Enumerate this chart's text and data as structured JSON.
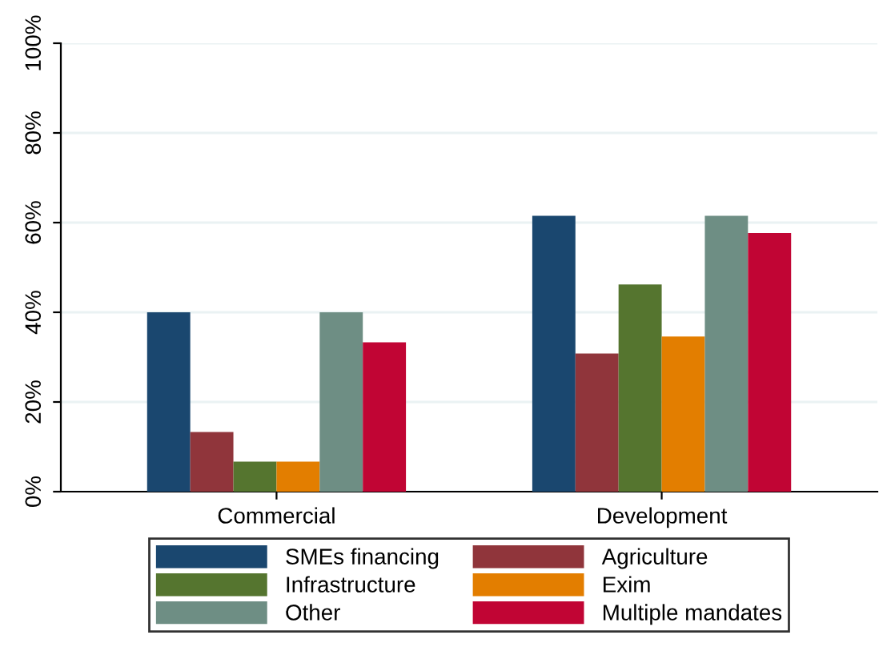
{
  "chart_data": {
    "type": "bar",
    "categories": [
      "Commercial",
      "Development"
    ],
    "series": [
      {
        "name": "SMEs financing",
        "color": "#1a476f",
        "values": [
          40,
          61.5
        ]
      },
      {
        "name": "Agriculture",
        "color": "#90353b",
        "values": [
          13.3,
          30.8
        ]
      },
      {
        "name": "Infrastructure",
        "color": "#55752f",
        "values": [
          6.7,
          46.2
        ]
      },
      {
        "name": "Exim",
        "color": "#e37e00",
        "values": [
          6.7,
          34.6
        ]
      },
      {
        "name": "Other",
        "color": "#6e8e84",
        "values": [
          40,
          61.5
        ]
      },
      {
        "name": "Multiple mandates",
        "color": "#c10534",
        "values": [
          33.3,
          57.7
        ]
      }
    ],
    "ylim": [
      0,
      100
    ],
    "yticks": [
      {
        "value": 0,
        "label": "0%"
      },
      {
        "value": 20,
        "label": "20%"
      },
      {
        "value": 40,
        "label": "40%"
      },
      {
        "value": 60,
        "label": "60%"
      },
      {
        "value": 80,
        "label": "80%"
      },
      {
        "value": 100,
        "label": "100%"
      }
    ],
    "grid": "y",
    "legend": "bottom"
  }
}
